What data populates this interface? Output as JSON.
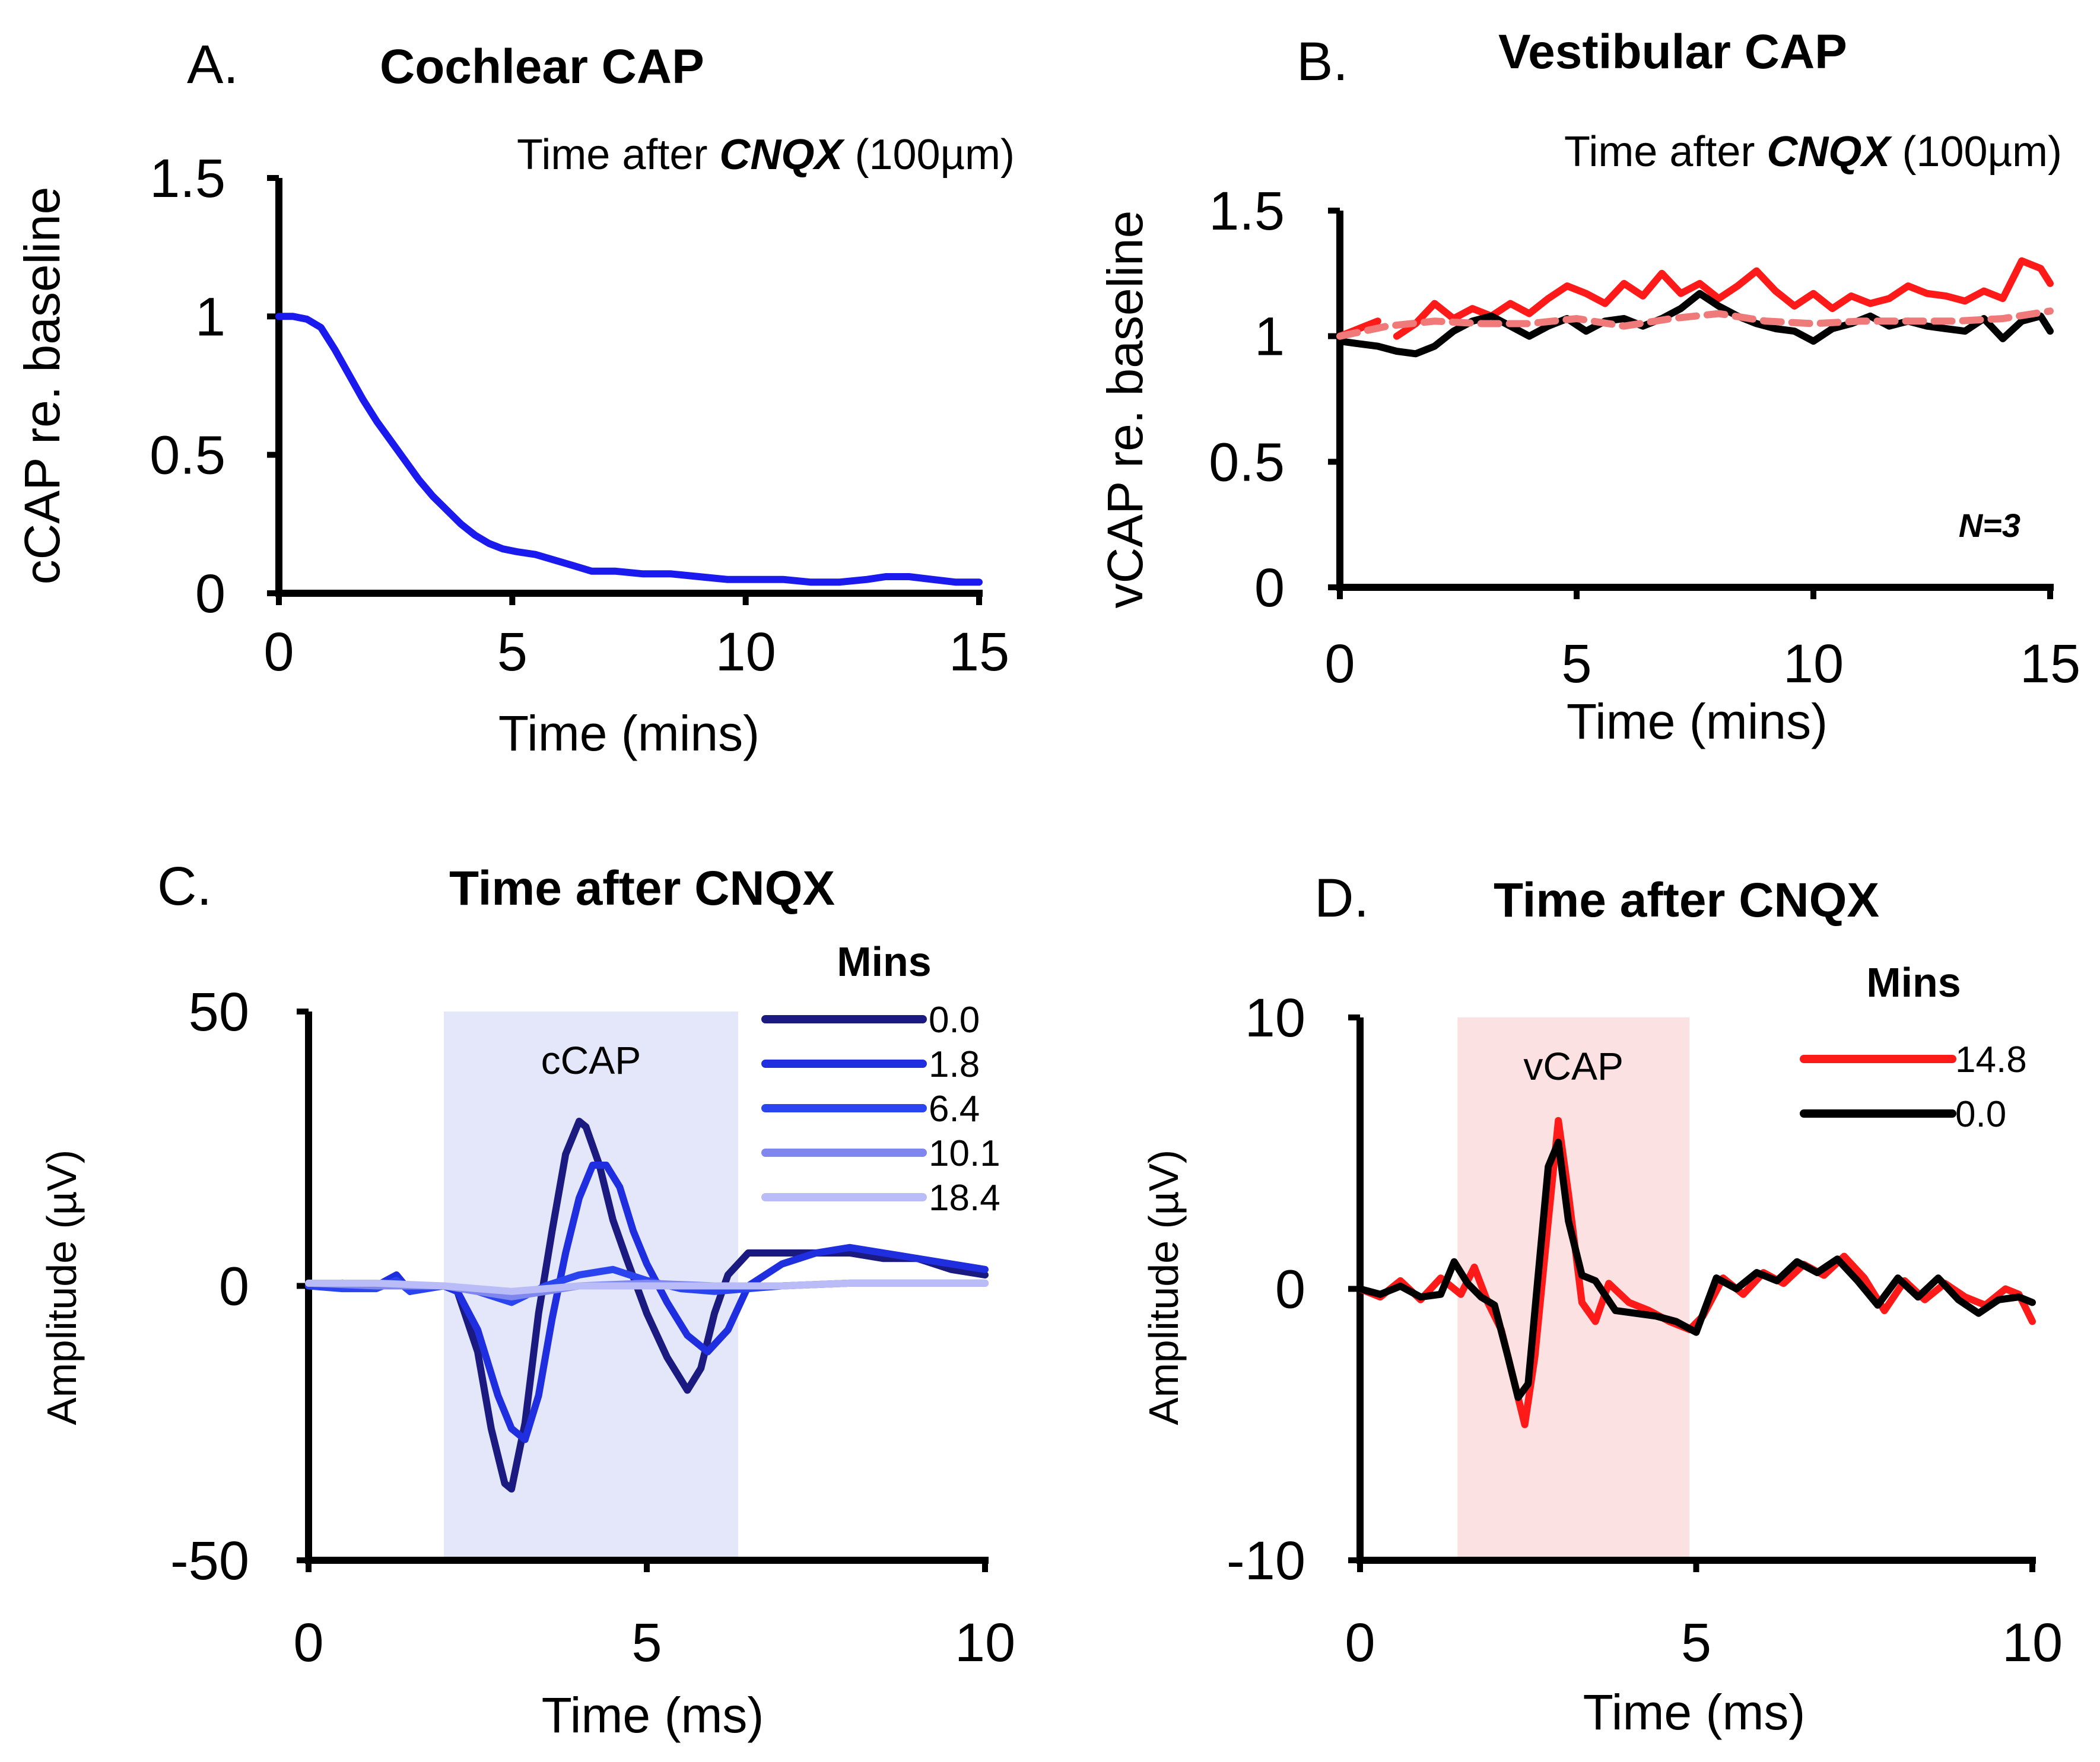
{
  "panels": [
    {
      "id": "A",
      "letter": "A.",
      "title": "Cochlear CAP",
      "subtitle_pre": "Time after ",
      "subtitle_em": "CNQX",
      "subtitle_post": " (100µm)",
      "annotation": ""
    },
    {
      "id": "B",
      "letter": "B.",
      "title": "Vestibular CAP",
      "subtitle_pre": "Time after ",
      "subtitle_em": "CNQX",
      "subtitle_post": " (100µm)",
      "annotation": "N=3"
    },
    {
      "id": "C",
      "letter": "C.",
      "title": "Time after CNQX",
      "legend_title": "Mins",
      "shade_label": "cCAP"
    },
    {
      "id": "D",
      "letter": "D.",
      "title": "Time after CNQX",
      "legend_title": "Mins",
      "shade_label": "vCAP"
    }
  ],
  "chart_data": [
    {
      "panel": "A",
      "type": "line",
      "title": "Cochlear CAP",
      "xlabel": "Time (mins)",
      "ylabel": "cCAP re. baseline",
      "xlim": [
        0,
        15
      ],
      "ylim": [
        0,
        1.5
      ],
      "xticks": [
        "0",
        "5",
        "10",
        "15"
      ],
      "yticks": [
        "0",
        "0.5",
        "1",
        "1.5"
      ],
      "series": [
        {
          "name": "cCAP",
          "color": "#1a1aee",
          "x": [
            0,
            0.3,
            0.6,
            0.9,
            1.2,
            1.5,
            1.8,
            2.1,
            2.4,
            2.7,
            3.0,
            3.3,
            3.6,
            3.9,
            4.2,
            4.5,
            4.8,
            5.1,
            5.5,
            5.9,
            6.3,
            6.7,
            7.2,
            7.8,
            8.4,
            9.0,
            9.6,
            10.2,
            10.8,
            11.4,
            12.0,
            12.6,
            13.0,
            13.5,
            14.0,
            14.5,
            15.0
          ],
          "y": [
            1.0,
            1.0,
            0.99,
            0.96,
            0.88,
            0.79,
            0.7,
            0.62,
            0.55,
            0.48,
            0.41,
            0.35,
            0.3,
            0.25,
            0.21,
            0.18,
            0.16,
            0.15,
            0.14,
            0.12,
            0.1,
            0.08,
            0.08,
            0.07,
            0.07,
            0.06,
            0.05,
            0.05,
            0.05,
            0.04,
            0.04,
            0.05,
            0.06,
            0.06,
            0.05,
            0.04,
            0.04
          ]
        }
      ]
    },
    {
      "panel": "B",
      "type": "line",
      "title": "Vestibular CAP",
      "xlabel": "Time (mins)",
      "ylabel": "vCAP re. baseline",
      "xlim": [
        0,
        15
      ],
      "ylim": [
        0,
        1.5
      ],
      "xticks": [
        "0",
        "5",
        "10",
        "15"
      ],
      "yticks": [
        "0",
        "0.5",
        "1",
        "1.5"
      ],
      "series": [
        {
          "name": "red",
          "color": "#ff1a1a",
          "dash": false,
          "gap_after_index": 2,
          "x": [
            0,
            0.4,
            0.8,
            1.2,
            1.6,
            2.0,
            2.4,
            2.8,
            3.2,
            3.6,
            4.0,
            4.4,
            4.8,
            5.2,
            5.6,
            6.0,
            6.4,
            6.8,
            7.2,
            7.6,
            8.0,
            8.4,
            8.8,
            9.2,
            9.6,
            10.0,
            10.4,
            10.8,
            11.2,
            11.6,
            12.0,
            12.4,
            12.8,
            13.2,
            13.6,
            14.0,
            14.4,
            14.8,
            15.0
          ],
          "y": [
            1.0,
            1.03,
            1.06,
            1.0,
            1.05,
            1.13,
            1.07,
            1.11,
            1.08,
            1.13,
            1.09,
            1.15,
            1.2,
            1.17,
            1.13,
            1.21,
            1.16,
            1.25,
            1.17,
            1.21,
            1.15,
            1.2,
            1.26,
            1.18,
            1.12,
            1.17,
            1.11,
            1.16,
            1.13,
            1.15,
            1.2,
            1.17,
            1.16,
            1.14,
            1.18,
            1.15,
            1.3,
            1.27,
            1.21
          ]
        },
        {
          "name": "black",
          "color": "#000000",
          "dash": false,
          "gap_after_index": -1,
          "x": [
            0,
            0.4,
            0.8,
            1.2,
            1.6,
            2.0,
            2.4,
            2.8,
            3.2,
            3.6,
            4.0,
            4.4,
            4.8,
            5.2,
            5.6,
            6.0,
            6.4,
            6.8,
            7.2,
            7.6,
            8.0,
            8.4,
            8.8,
            9.2,
            9.6,
            10.0,
            10.4,
            10.8,
            11.2,
            11.6,
            12.0,
            12.4,
            12.8,
            13.2,
            13.6,
            14.0,
            14.4,
            14.8,
            15.0
          ],
          "y": [
            0.98,
            0.97,
            0.96,
            0.94,
            0.93,
            0.96,
            1.02,
            1.06,
            1.08,
            1.04,
            1.0,
            1.04,
            1.07,
            1.02,
            1.06,
            1.07,
            1.04,
            1.07,
            1.11,
            1.17,
            1.12,
            1.08,
            1.05,
            1.03,
            1.02,
            0.98,
            1.03,
            1.05,
            1.08,
            1.04,
            1.06,
            1.04,
            1.03,
            1.02,
            1.07,
            0.99,
            1.06,
            1.08,
            1.02
          ]
        },
        {
          "name": "pink-dashed",
          "color": "#f07a7a",
          "dash": true,
          "gap_after_index": -1,
          "x": [
            0,
            1,
            2,
            3,
            4,
            5,
            6,
            7,
            8,
            9,
            10,
            11,
            12,
            13,
            14,
            15
          ],
          "y": [
            1.0,
            1.04,
            1.06,
            1.05,
            1.05,
            1.07,
            1.04,
            1.07,
            1.09,
            1.06,
            1.05,
            1.06,
            1.06,
            1.06,
            1.07,
            1.1
          ]
        }
      ]
    },
    {
      "panel": "C",
      "type": "line",
      "title": "Time after CNQX",
      "xlabel": "Time (ms)",
      "ylabel": "Amplitude (µV)",
      "xlim": [
        0,
        10
      ],
      "ylim": [
        -50,
        50
      ],
      "xticks": [
        "0",
        "5",
        "10"
      ],
      "yticks": [
        "-50",
        "0",
        "50"
      ],
      "shaded_region": {
        "x": [
          2.0,
          6.35
        ],
        "color": "#e4e6fa",
        "label": "cCAP"
      },
      "legend_title": "Mins",
      "series": [
        {
          "name": "0.0",
          "color": "#1a1a80",
          "x": [
            0,
            0.5,
            1.0,
            1.3,
            1.5,
            1.8,
            2.0,
            2.2,
            2.5,
            2.7,
            2.9,
            3.0,
            3.2,
            3.4,
            3.6,
            3.8,
            4.0,
            4.1,
            4.3,
            4.5,
            4.7,
            5.0,
            5.3,
            5.6,
            5.8,
            6.0,
            6.2,
            6.5,
            7.0,
            7.5,
            8.0,
            8.5,
            9.0,
            9.5,
            10.0
          ],
          "y": [
            0,
            0.5,
            0,
            1.5,
            -1,
            0,
            0,
            -1,
            -12,
            -26,
            -36,
            -37,
            -25,
            -5,
            10,
            24,
            30,
            29,
            22,
            12,
            5,
            -5,
            -13,
            -19,
            -15,
            -5,
            2,
            6,
            6,
            6,
            6,
            5,
            5,
            3,
            2
          ]
        },
        {
          "name": "1.8",
          "color": "#1f2fe0",
          "x": [
            0,
            0.5,
            1.0,
            1.3,
            1.5,
            1.8,
            2.0,
            2.2,
            2.5,
            2.8,
            3.0,
            3.2,
            3.4,
            3.6,
            3.8,
            4.0,
            4.2,
            4.4,
            4.6,
            4.8,
            5.0,
            5.3,
            5.6,
            5.9,
            6.2,
            6.5,
            7.0,
            7.5,
            8.0,
            8.5,
            9.0,
            9.5,
            10.0
          ],
          "y": [
            0,
            0.5,
            0,
            2,
            -1,
            0,
            0,
            -1,
            -8,
            -20,
            -26,
            -28,
            -20,
            -6,
            6,
            16,
            22,
            22,
            18,
            10,
            4,
            -3,
            -9,
            -12,
            -8,
            0,
            4,
            6,
            7,
            6,
            5,
            4,
            3
          ]
        },
        {
          "name": "6.4",
          "color": "#2a44f0",
          "x": [
            0,
            0.5,
            1.0,
            1.3,
            1.5,
            2.0,
            2.5,
            3.0,
            3.5,
            4.0,
            4.5,
            5.0,
            5.5,
            6.0,
            7.0,
            8.0,
            9.0,
            10.0
          ],
          "y": [
            0,
            -0.5,
            -0.5,
            1,
            -1,
            0,
            -1,
            -3,
            0,
            2,
            3,
            1,
            -0.5,
            -1,
            0,
            0.5,
            0.5,
            0.5
          ]
        },
        {
          "name": "10.1",
          "color": "#7f86ee",
          "x": [
            0,
            1.0,
            2.0,
            3.0,
            3.5,
            4.0,
            5.0,
            6.0,
            7.0,
            8.0,
            9.0,
            10.0
          ],
          "y": [
            0.5,
            0,
            0,
            -2,
            -1,
            0,
            0.5,
            0,
            0,
            0.5,
            0.5,
            0.5
          ]
        },
        {
          "name": "18.4",
          "color": "#b9bcf6",
          "x": [
            0,
            1.0,
            2.0,
            3.0,
            4.0,
            5.0,
            6.0,
            7.0,
            8.0,
            9.0,
            10.0
          ],
          "y": [
            0.5,
            0.5,
            0,
            -1,
            0,
            0,
            0,
            0,
            0.5,
            0.5,
            0.5
          ]
        }
      ]
    },
    {
      "panel": "D",
      "type": "line",
      "title": "Time after CNQX",
      "xlabel": "Time (ms)",
      "ylabel": "Amplitude (µV)",
      "xlim": [
        0,
        10
      ],
      "ylim": [
        -10,
        10
      ],
      "xticks": [
        "0",
        "5",
        "10"
      ],
      "yticks": [
        "-10",
        "0",
        "10"
      ],
      "shaded_region": {
        "x": [
          1.45,
          4.9
        ],
        "color": "#fbe1e1",
        "label": "vCAP"
      },
      "legend_title": "Mins",
      "series": [
        {
          "name": "14.8",
          "color": "#ff1a1a",
          "x": [
            0,
            0.3,
            0.6,
            0.9,
            1.2,
            1.5,
            1.7,
            1.9,
            2.1,
            2.3,
            2.45,
            2.6,
            2.8,
            2.95,
            3.1,
            3.3,
            3.5,
            3.7,
            4.0,
            4.3,
            4.6,
            4.9,
            5.1,
            5.4,
            5.7,
            6.0,
            6.3,
            6.6,
            6.9,
            7.2,
            7.5,
            7.8,
            8.1,
            8.4,
            8.7,
            9.0,
            9.3,
            9.6,
            9.8,
            10.0
          ],
          "y": [
            0,
            -0.3,
            0.3,
            -0.4,
            0.4,
            -0.2,
            0.8,
            -0.5,
            -1.5,
            -3.5,
            -5.0,
            -2.5,
            2.5,
            6.2,
            3.5,
            -0.5,
            -1.2,
            0.2,
            -0.5,
            -0.8,
            -1.2,
            -1.5,
            -1.0,
            0.4,
            -0.2,
            0.6,
            0.2,
            0.9,
            0.5,
            1.2,
            0.4,
            -0.8,
            0.3,
            -0.4,
            0.2,
            -0.3,
            -0.6,
            0.0,
            -0.2,
            -1.2
          ]
        },
        {
          "name": "0.0",
          "color": "#000000",
          "x": [
            0,
            0.3,
            0.6,
            0.9,
            1.2,
            1.4,
            1.6,
            1.8,
            2.0,
            2.2,
            2.35,
            2.5,
            2.65,
            2.8,
            2.95,
            3.1,
            3.3,
            3.5,
            3.8,
            4.1,
            4.4,
            4.7,
            5.0,
            5.3,
            5.6,
            5.9,
            6.2,
            6.5,
            6.8,
            7.1,
            7.4,
            7.7,
            8.0,
            8.3,
            8.6,
            8.9,
            9.2,
            9.5,
            9.8,
            10.0
          ],
          "y": [
            0,
            -0.2,
            0.1,
            -0.3,
            -0.2,
            1.0,
            0.2,
            -0.3,
            -0.6,
            -2.5,
            -4.0,
            -3.5,
            0.5,
            4.5,
            5.4,
            2.5,
            0.5,
            0.3,
            -0.8,
            -0.9,
            -1.0,
            -1.2,
            -1.6,
            0.4,
            0.0,
            0.6,
            0.3,
            1.0,
            0.6,
            1.1,
            0.3,
            -0.6,
            0.4,
            -0.3,
            0.4,
            -0.4,
            -0.9,
            -0.4,
            -0.3,
            -0.5
          ]
        }
      ]
    }
  ]
}
